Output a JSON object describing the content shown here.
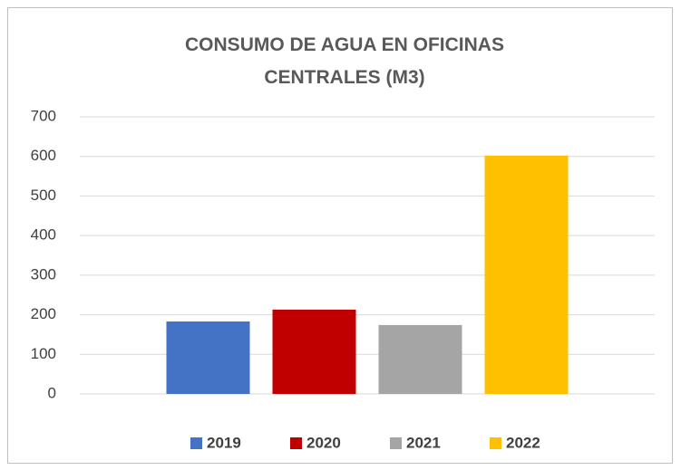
{
  "chart_data": {
    "type": "bar",
    "title": "CONSUMO DE AGUA EN OFICINAS CENTRALES (M3)",
    "categories": [
      null
    ],
    "series": [
      {
        "name": "2019",
        "color": "#4472c4",
        "values": [
          183
        ]
      },
      {
        "name": "2020",
        "color": "#c00000",
        "values": [
          213
        ]
      },
      {
        "name": "2021",
        "color": "#a5a5a5",
        "values": [
          174
        ]
      },
      {
        "name": "2022",
        "color": "#ffc000",
        "values": [
          602
        ]
      }
    ],
    "ylim": [
      0,
      700
    ],
    "yticks": [
      0,
      100,
      200,
      300,
      400,
      500,
      600,
      700
    ],
    "grid": true,
    "legend": "bottom"
  }
}
